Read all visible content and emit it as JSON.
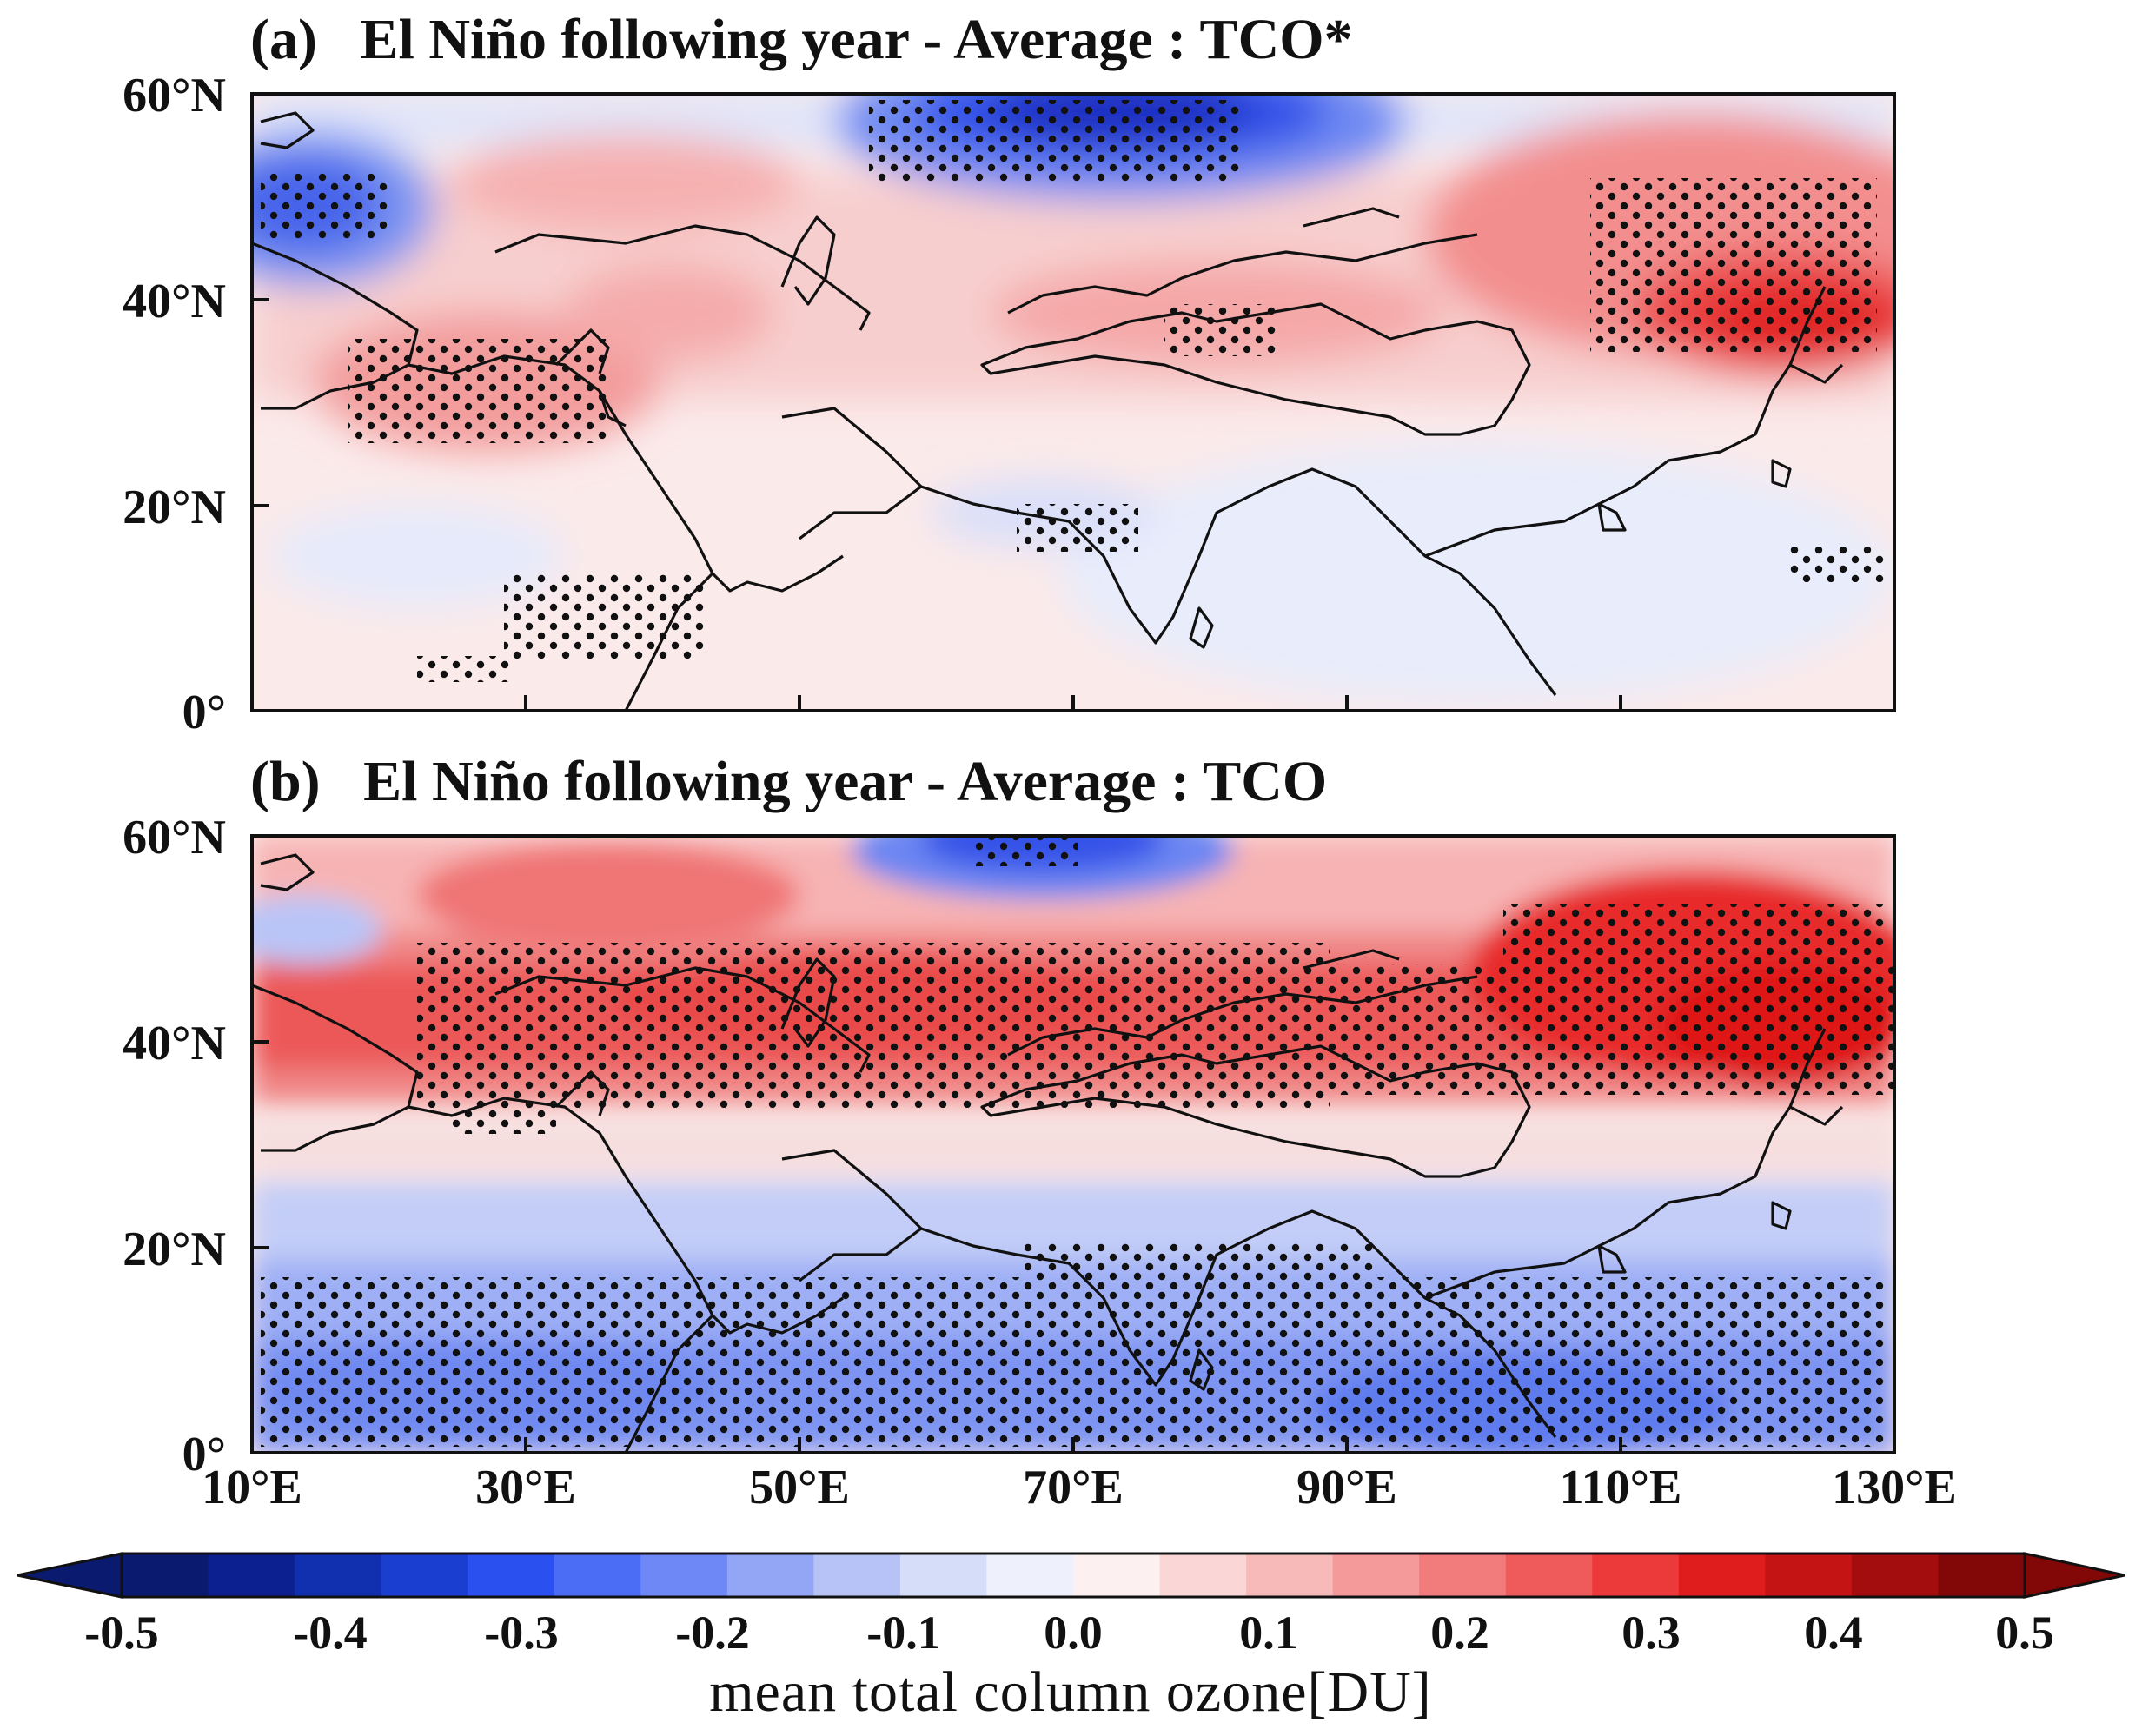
{
  "panel_a": {
    "title": "(a)   El Niño following year - Average : TCO*",
    "lat_labels": [
      "60°N",
      "40°N",
      "20°N",
      "0°"
    ]
  },
  "panel_b": {
    "title": "(b)   El Niño following year - Average : TCO",
    "lat_labels": [
      "60°N",
      "40°N",
      "20°N",
      "0°"
    ],
    "lon_labels": [
      "10°E",
      "30°E",
      "50°E",
      "70°E",
      "90°E",
      "110°E",
      "130°E"
    ]
  },
  "colorbar": {
    "ticks": [
      "-0.5",
      "-0.4",
      "-0.3",
      "-0.2",
      "-0.1",
      "0.0",
      "0.1",
      "0.2",
      "0.3",
      "0.4",
      "0.5"
    ],
    "label": "mean total column ozone[DU]",
    "colors": [
      "#0a1a6e",
      "#0d2090",
      "#1030b0",
      "#1a3fd0",
      "#2a50f0",
      "#4b6cf5",
      "#6e88f5",
      "#93a6f5",
      "#b7c3f7",
      "#d6ddf9",
      "#eef0fb",
      "#fdf0f0",
      "#fbd6d6",
      "#f8b9b9",
      "#f59a9a",
      "#f27b7b",
      "#ef5a5a",
      "#ec3a3a",
      "#e01d1d",
      "#c41414",
      "#a30d0d",
      "#820707"
    ]
  }
}
